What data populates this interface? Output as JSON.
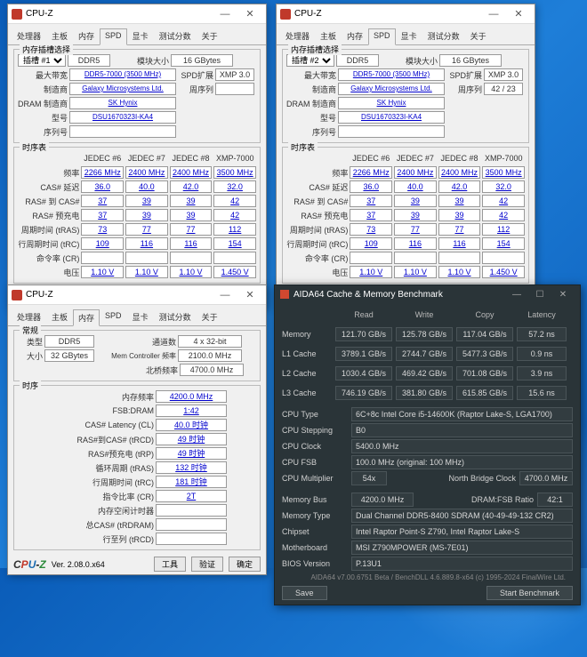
{
  "desktop": {
    "bg_start": "#0a5cb8",
    "bg_end": "#1e7ed8"
  },
  "cpuz_title": "CPU-Z",
  "cpuz_tabs": [
    "处理器",
    "主板",
    "内存",
    "SPD",
    "显卡",
    "测试分数",
    "关于"
  ],
  "cpuz_version": "Ver. 2.08.0.x64",
  "footer_buttons": [
    "工具",
    "验证",
    "确定"
  ],
  "spd1": {
    "active_tab": "SPD",
    "slot_group": "内存插槽选择",
    "slot": {
      "label": "插槽 #1",
      "type": "DDR5",
      "mod_size_lbl": "模块大小",
      "mod_size": "16 GBytes"
    },
    "rows": [
      {
        "l": "最大带宽",
        "v": "DDR5-7000 (3500 MHz)",
        "l2": "SPD扩展",
        "v2": "XMP 3.0"
      },
      {
        "l": "制造商",
        "v": "Galaxy Microsystems Ltd.",
        "l2": "周序列",
        "v2": ""
      },
      {
        "l": "DRAM 制造商",
        "v": "SK Hynix",
        "l2": "",
        "v2": ""
      },
      {
        "l": "型号",
        "v": "DSU1670323I-KA4",
        "l2": "",
        "v2": ""
      },
      {
        "l": "序列号",
        "v": "",
        "l2": "",
        "v2": ""
      }
    ],
    "timing_group": "时序表",
    "thead": [
      "",
      "JEDEC #6",
      "JEDEC #7",
      "JEDEC #8",
      "XMP-7000"
    ],
    "trows": [
      {
        "l": "频率",
        "c": [
          "2266 MHz",
          "2400 MHz",
          "2400 MHz",
          "3500 MHz"
        ]
      },
      {
        "l": "CAS# 延迟",
        "c": [
          "36.0",
          "40.0",
          "42.0",
          "32.0"
        ]
      },
      {
        "l": "RAS# 到 CAS#",
        "c": [
          "37",
          "39",
          "39",
          "42"
        ]
      },
      {
        "l": "RAS# 预充电",
        "c": [
          "37",
          "39",
          "39",
          "42"
        ]
      },
      {
        "l": "周期时间 (tRAS)",
        "c": [
          "73",
          "77",
          "77",
          "112"
        ]
      },
      {
        "l": "行周期时间 (tRC)",
        "c": [
          "109",
          "116",
          "116",
          "154"
        ]
      },
      {
        "l": "命令率 (CR)",
        "c": [
          "",
          "",
          "",
          ""
        ]
      },
      {
        "l": "电压",
        "c": [
          "1.10 V",
          "1.10 V",
          "1.10 V",
          "1.450 V"
        ]
      }
    ]
  },
  "spd2": {
    "active_tab": "SPD",
    "slot": {
      "label": "插槽 #2",
      "type": "DDR5",
      "mod_size_lbl": "模块大小",
      "mod_size": "16 GBytes"
    },
    "rows": [
      {
        "l": "最大带宽",
        "v": "DDR5-7000 (3500 MHz)",
        "l2": "SPD扩展",
        "v2": "XMP 3.0"
      },
      {
        "l": "制造商",
        "v": "Galaxy Microsystems Ltd.",
        "l2": "周序列",
        "v2": "42 / 23"
      },
      {
        "l": "DRAM 制造商",
        "v": "SK Hynix",
        "l2": "",
        "v2": ""
      },
      {
        "l": "型号",
        "v": "DSU1670323I-KA4",
        "l2": "",
        "v2": ""
      },
      {
        "l": "序列号",
        "v": "",
        "l2": "",
        "v2": ""
      }
    ]
  },
  "mem": {
    "active_tab": "内存",
    "general_group": "常规",
    "type_lbl": "类型",
    "type": "DDR5",
    "chan_lbl": "通道数",
    "chan": "4 x 32-bit",
    "size_lbl": "大小",
    "size": "32 GBytes",
    "mc_lbl": "Mem Controller 频率",
    "mc": "2100.0 MHz",
    "nb_lbl": "北桥频率",
    "nb": "4700.0 MHz",
    "timing_group": "时序",
    "trows": [
      {
        "l": "内存频率",
        "v": "4200.0 MHz"
      },
      {
        "l": "FSB:DRAM",
        "v": "1:42"
      },
      {
        "l": "CAS# Latency (CL)",
        "v": "40.0 时钟"
      },
      {
        "l": "RAS#到CAS# (tRCD)",
        "v": "49 时钟"
      },
      {
        "l": "RAS#预充电 (tRP)",
        "v": "49 时钟"
      },
      {
        "l": "循环周期 (tRAS)",
        "v": "132 时钟"
      },
      {
        "l": "行周期时间 (tRC)",
        "v": "181 时钟"
      },
      {
        "l": "指令比率 (CR)",
        "v": "2T"
      },
      {
        "l": "内存空闲计时器",
        "v": ""
      },
      {
        "l": "总CAS# (tRDRAM)",
        "v": ""
      },
      {
        "l": "行至列 (tRCD)",
        "v": ""
      }
    ]
  },
  "aida": {
    "title": "AIDA64 Cache & Memory Benchmark",
    "cols": [
      "Read",
      "Write",
      "Copy",
      "Latency"
    ],
    "rows": [
      {
        "l": "Memory",
        "c": [
          "121.70 GB/s",
          "125.78 GB/s",
          "117.04 GB/s",
          "57.2 ns"
        ]
      },
      {
        "l": "L1 Cache",
        "c": [
          "3789.1 GB/s",
          "2744.7 GB/s",
          "5477.3 GB/s",
          "0.9 ns"
        ]
      },
      {
        "l": "L2 Cache",
        "c": [
          "1030.4 GB/s",
          "469.42 GB/s",
          "701.08 GB/s",
          "3.9 ns"
        ]
      },
      {
        "l": "L3 Cache",
        "c": [
          "746.19 GB/s",
          "381.80 GB/s",
          "615.85 GB/s",
          "15.6 ns"
        ]
      }
    ],
    "info": [
      {
        "l": "CPU Type",
        "v": "6C+8c Intel Core i5-14600K (Raptor Lake-S, LGA1700)"
      },
      {
        "l": "CPU Stepping",
        "v": "B0"
      },
      {
        "l": "CPU Clock",
        "v": "5400.0 MHz"
      },
      {
        "l": "CPU FSB",
        "v": "100.0 MHz   (original: 100 MHz)"
      }
    ],
    "mult": {
      "l": "CPU Multiplier",
      "v": "54x",
      "l2": "North Bridge Clock",
      "v2": "4700.0 MHz"
    },
    "membus": {
      "l": "Memory Bus",
      "v": "4200.0 MHz",
      "l2": "DRAM:FSB Ratio",
      "v2": "42:1"
    },
    "info2": [
      {
        "l": "Memory Type",
        "v": "Dual Channel DDR5-8400 SDRAM  (40-49-49-132 CR2)"
      },
      {
        "l": "Chipset",
        "v": "Intel Raptor Point-S Z790, Intel Raptor Lake-S"
      },
      {
        "l": "Motherboard",
        "v": "MSI Z790MPOWER (MS-7E01)"
      },
      {
        "l": "BIOS Version",
        "v": "P.13U1"
      }
    ],
    "buttons": [
      "Save",
      "Start Benchmark"
    ],
    "copyright": "AIDA64 v7.00.6751 Beta / BenchDLL 4.6.889.8-x64  (c) 1995-2024 FinalWire Ltd."
  }
}
